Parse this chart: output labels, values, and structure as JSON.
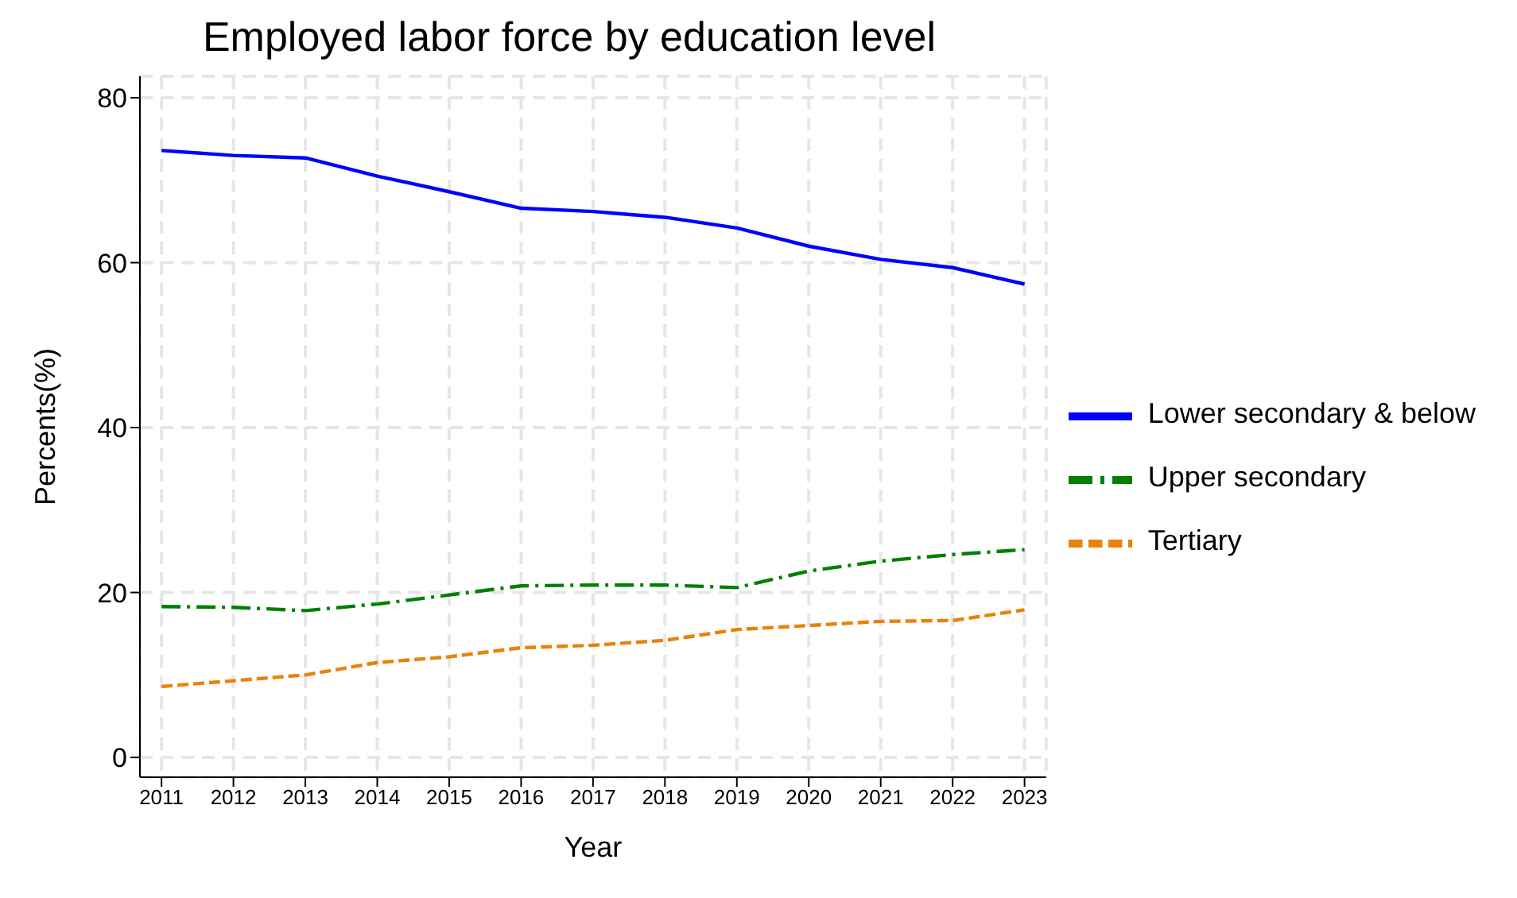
{
  "chart_data": {
    "type": "line",
    "title": "Employed labor force by education level",
    "xlabel": "Year",
    "ylabel": "Percents(%)",
    "x": [
      2011,
      2012,
      2013,
      2014,
      2015,
      2016,
      2017,
      2018,
      2019,
      2020,
      2021,
      2022,
      2023
    ],
    "series": [
      {
        "name": "Lower secondary & below",
        "color": "#0000ff",
        "line_style": "solid",
        "values": [
          73.6,
          73.0,
          72.7,
          70.5,
          68.6,
          66.6,
          66.2,
          65.5,
          64.2,
          62.0,
          60.4,
          59.4,
          57.4
        ]
      },
      {
        "name": "Upper secondary",
        "color": "#008000",
        "line_style": "dashdot",
        "values": [
          18.3,
          18.2,
          17.8,
          18.6,
          19.7,
          20.8,
          20.9,
          20.9,
          20.6,
          22.6,
          23.8,
          24.6,
          25.2
        ]
      },
      {
        "name": "Tertiary",
        "color": "#e8820c",
        "line_style": "dashed",
        "values": [
          8.6,
          9.3,
          10.0,
          11.5,
          12.2,
          13.3,
          13.6,
          14.2,
          15.5,
          16.0,
          16.5,
          16.6,
          17.9
        ]
      }
    ],
    "xlim": [
      2010.7,
      2023.3
    ],
    "xticks": [
      2011,
      2012,
      2013,
      2014,
      2015,
      2016,
      2017,
      2018,
      2019,
      2020,
      2021,
      2022,
      2023
    ],
    "ylim": [
      -2.4,
      82.6
    ],
    "yticks": [
      0,
      20,
      40,
      60,
      80
    ],
    "grid": true,
    "legend": "right",
    "marker": "none"
  }
}
